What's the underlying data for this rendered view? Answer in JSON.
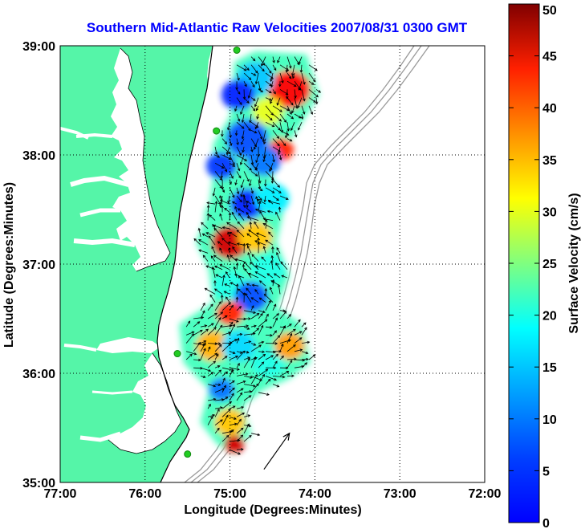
{
  "title": "Southern Mid-Atlantic Raw Velocities 2007/08/31 0300 GMT",
  "chart_data": {
    "type": "heatmap",
    "title": "Southern Mid-Atlantic Raw Velocities 2007/08/31 0300 GMT",
    "xlabel": "Longitude (Degrees:Minutes)",
    "ylabel": "Latitude (Degrees:Minutes)",
    "colorbar_label": "Surface Velocity (cm/s)",
    "x_ticks": [
      "77:00",
      "76:00",
      "75:00",
      "74:00",
      "73:00",
      "72:00"
    ],
    "y_ticks": [
      "39:00",
      "38:00",
      "37:00",
      "36:00",
      "35:00"
    ],
    "xlim": [
      -77,
      -72
    ],
    "ylim": [
      35,
      39
    ],
    "clim": [
      0,
      50
    ],
    "colorbar_ticks": [
      "0",
      "5",
      "10",
      "15",
      "20",
      "25",
      "30",
      "35",
      "40",
      "45",
      "50"
    ],
    "grid": true,
    "colormap": "jet",
    "colors": {
      "land": "#55f5a8",
      "title": "#0000ff",
      "coastline": "#000000",
      "bathymetry": "#9a9a9a",
      "stations": "#22cc22"
    },
    "stations": [
      {
        "lon": -74.92,
        "lat": 38.96
      },
      {
        "lon": -75.16,
        "lat": 38.22
      },
      {
        "lon": -75.62,
        "lat": 36.18
      },
      {
        "lon": -75.5,
        "lat": 35.26
      }
    ],
    "velocity_patches": [
      {
        "lon": -74.3,
        "lat": 38.6,
        "speed": 44,
        "r": 0.25
      },
      {
        "lon": -74.55,
        "lat": 38.4,
        "speed": 30,
        "r": 0.18
      },
      {
        "lon": -74.7,
        "lat": 38.7,
        "speed": 16,
        "r": 0.22
      },
      {
        "lon": -74.9,
        "lat": 38.55,
        "speed": 8,
        "r": 0.2
      },
      {
        "lon": -74.8,
        "lat": 38.15,
        "speed": 10,
        "r": 0.25
      },
      {
        "lon": -74.4,
        "lat": 38.05,
        "speed": 42,
        "r": 0.15
      },
      {
        "lon": -74.6,
        "lat": 37.95,
        "speed": 12,
        "r": 0.2
      },
      {
        "lon": -75.1,
        "lat": 37.9,
        "speed": 9,
        "r": 0.18
      },
      {
        "lon": -75.1,
        "lat": 37.45,
        "speed": 22,
        "r": 0.2
      },
      {
        "lon": -74.8,
        "lat": 37.55,
        "speed": 8,
        "r": 0.2
      },
      {
        "lon": -74.5,
        "lat": 37.6,
        "speed": 18,
        "r": 0.2
      },
      {
        "lon": -75.0,
        "lat": 37.2,
        "speed": 46,
        "r": 0.22
      },
      {
        "lon": -74.7,
        "lat": 37.25,
        "speed": 34,
        "r": 0.2
      },
      {
        "lon": -74.55,
        "lat": 36.95,
        "speed": 20,
        "r": 0.2
      },
      {
        "lon": -75.0,
        "lat": 36.8,
        "speed": 20,
        "r": 0.2
      },
      {
        "lon": -74.75,
        "lat": 36.7,
        "speed": 10,
        "r": 0.2
      },
      {
        "lon": -75.0,
        "lat": 36.55,
        "speed": 42,
        "r": 0.16
      },
      {
        "lon": -75.2,
        "lat": 36.25,
        "speed": 35,
        "r": 0.2
      },
      {
        "lon": -74.9,
        "lat": 36.25,
        "speed": 17,
        "r": 0.2
      },
      {
        "lon": -74.55,
        "lat": 36.1,
        "speed": 20,
        "r": 0.2
      },
      {
        "lon": -74.3,
        "lat": 36.25,
        "speed": 36,
        "r": 0.18
      },
      {
        "lon": -75.1,
        "lat": 35.85,
        "speed": 12,
        "r": 0.15
      },
      {
        "lon": -75.0,
        "lat": 35.55,
        "speed": 34,
        "r": 0.18
      },
      {
        "lon": -74.95,
        "lat": 35.35,
        "speed": 46,
        "r": 0.12
      }
    ],
    "reference_arrow": {
      "lon1": -74.6,
      "lat1": 35.12,
      "lon2": -74.3,
      "lat2": 35.45
    }
  }
}
